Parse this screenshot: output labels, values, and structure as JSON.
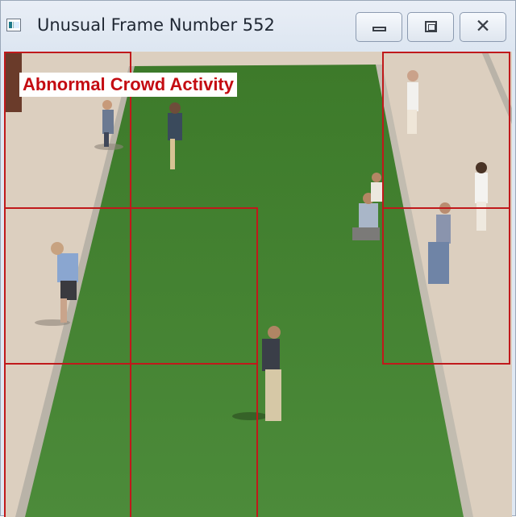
{
  "window": {
    "title": "Unusual Frame Number 552",
    "app_icon": "video-app-icon",
    "controls": {
      "minimize_icon": "minimize-icon",
      "maximize_icon": "maximize-icon",
      "close_icon": "close-icon",
      "close_glyph": "✕"
    }
  },
  "video": {
    "alert_label": "Abnormal Crowd Activity",
    "alert_color": "#c40c12",
    "grid_color": "#c0191b",
    "highlighted_cells": [
      {
        "row": 0,
        "col": 0
      },
      {
        "row": 0,
        "col": 3
      },
      {
        "row": 1,
        "col": 0
      },
      {
        "row": 1,
        "col": 1
      },
      {
        "row": 1,
        "col": 3
      },
      {
        "row": 2,
        "col": 0
      },
      {
        "row": 2,
        "col": 1
      }
    ]
  },
  "colors": {
    "grass": "#3f7f2e",
    "path": "#dccfbf",
    "titlebar": "#e2e9f3"
  }
}
